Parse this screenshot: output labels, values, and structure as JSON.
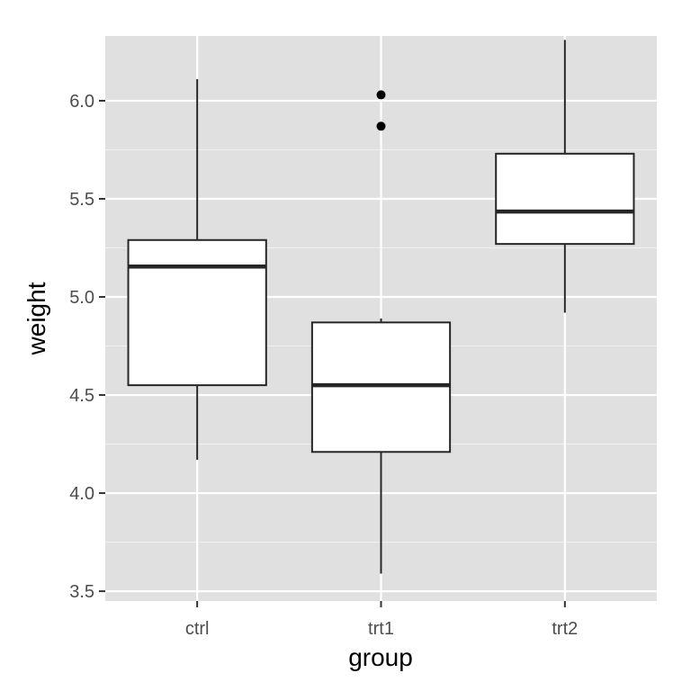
{
  "chart_data": {
    "type": "boxplot",
    "xlabel": "group",
    "ylabel": "weight",
    "categories": [
      "ctrl",
      "trt1",
      "trt2"
    ],
    "ylim": [
      3.45,
      6.33
    ],
    "yticks": [
      3.5,
      4.0,
      4.5,
      5.0,
      5.5,
      6.0
    ],
    "ytick_labels": [
      "3.5",
      "4.0",
      "4.5",
      "5.0",
      "5.5",
      "6.0"
    ],
    "boxes": [
      {
        "group": "ctrl",
        "whisker_low": 4.17,
        "q1": 4.55,
        "median": 5.155,
        "q3": 5.29,
        "whisker_high": 6.11,
        "outliers": []
      },
      {
        "group": "trt1",
        "whisker_low": 3.59,
        "q1": 4.21,
        "median": 4.55,
        "q3": 4.87,
        "whisker_high": 4.89,
        "outliers": [
          5.87,
          6.03
        ]
      },
      {
        "group": "trt2",
        "whisker_low": 4.92,
        "q1": 5.27,
        "median": 5.435,
        "q3": 5.73,
        "whisker_high": 6.31,
        "outliers": []
      }
    ],
    "grid": true,
    "colors": {
      "panel": "#e0e0e0",
      "grid": "#ffffff",
      "box_fill": "#ffffff",
      "box_stroke": "#262626"
    }
  }
}
